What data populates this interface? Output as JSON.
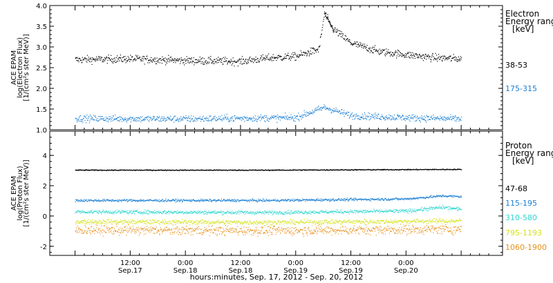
{
  "chart_data": [
    {
      "type": "scatter",
      "panel": "electron",
      "ylabel_lines": [
        "ACE EPAM",
        "log(Electron Flux)",
        "[1/(cm²s ster MeV)]"
      ],
      "ylim": [
        1.0,
        4.0
      ],
      "yticks": [
        1.0,
        1.5,
        2.0,
        2.5,
        3.0,
        3.5,
        4.0
      ],
      "ytick_labels": [
        "1.0",
        "1.5",
        "2.0",
        "2.5",
        "3.0",
        "3.5",
        "4.0"
      ],
      "legend_title_lines": [
        "Electron",
        "Energy ranges",
        "[keV]"
      ],
      "series": [
        {
          "name": "38-53",
          "color": "#000000",
          "baseline": 2.68,
          "noise": 0.09,
          "peak_hour": 54.2,
          "peak_value": 3.82,
          "points": [
            [
              0,
              2.7
            ],
            [
              12,
              2.72
            ],
            [
              24,
              2.68
            ],
            [
              36,
              2.66
            ],
            [
              42,
              2.74
            ],
            [
              48,
              2.78
            ],
            [
              53,
              2.95
            ],
            [
              54.2,
              3.82
            ],
            [
              56,
              3.45
            ],
            [
              60,
              3.1
            ],
            [
              66,
              2.9
            ],
            [
              72,
              2.82
            ],
            [
              78,
              2.75
            ],
            [
              84,
              2.72
            ]
          ]
        },
        {
          "name": "175-315",
          "color": "#1a7fd4",
          "baseline": 1.28,
          "noise": 0.08,
          "points": [
            [
              0,
              1.28
            ],
            [
              24,
              1.27
            ],
            [
              48,
              1.3
            ],
            [
              54.2,
              1.55
            ],
            [
              60,
              1.35
            ],
            [
              72,
              1.3
            ],
            [
              84,
              1.27
            ]
          ]
        }
      ]
    },
    {
      "type": "scatter",
      "panel": "proton",
      "ylabel_lines": [
        "ACE EPAM",
        "log(Proton Flux)",
        "[1/(cm²s ster MeV)]"
      ],
      "ylim": [
        -2.6,
        5.6
      ],
      "yticks": [
        -2,
        0,
        2,
        4
      ],
      "ytick_labels": [
        "-2",
        "0",
        "2",
        "4"
      ],
      "legend_title_lines": [
        "Proton",
        "Energy ranges",
        "[keV]"
      ],
      "series": [
        {
          "name": "47-68",
          "color": "#000000",
          "baseline": 3.05,
          "noise": 0.03,
          "points": [
            [
              0,
              3.05
            ],
            [
              42,
              3.05
            ],
            [
              84,
              3.1
            ]
          ]
        },
        {
          "name": "115-195",
          "color": "#1a7fd4",
          "baseline": 1.05,
          "noise": 0.08,
          "points": [
            [
              0,
              1.05
            ],
            [
              42,
              1.05
            ],
            [
              72,
              1.15
            ],
            [
              80,
              1.35
            ],
            [
              84,
              1.3
            ]
          ]
        },
        {
          "name": "310-580",
          "color": "#2fd6d0",
          "baseline": 0.3,
          "noise": 0.12,
          "points": [
            [
              0,
              0.3
            ],
            [
              42,
              0.25
            ],
            [
              72,
              0.35
            ],
            [
              80,
              0.6
            ],
            [
              84,
              0.45
            ]
          ]
        },
        {
          "name": "795-1193",
          "color": "#d4e21a",
          "baseline": -0.35,
          "noise": 0.15,
          "points": [
            [
              0,
              -0.35
            ],
            [
              42,
              -0.4
            ],
            [
              84,
              -0.3
            ]
          ]
        },
        {
          "name": "1060-1900",
          "color": "#e8901a",
          "baseline": -0.9,
          "noise": 0.3,
          "points": [
            [
              0,
              -0.9
            ],
            [
              42,
              -0.95
            ],
            [
              84,
              -0.85
            ]
          ]
        }
      ]
    }
  ],
  "x_axis": {
    "range_hours": [
      -5.5,
      93
    ],
    "ticks": [
      {
        "hour": 12,
        "time": "12:00",
        "date": "Sep.17"
      },
      {
        "hour": 24,
        "time": "0:00",
        "date": "Sep.18"
      },
      {
        "hour": 36,
        "time": "12:00",
        "date": "Sep.18"
      },
      {
        "hour": 48,
        "time": "0:00",
        "date": "Sep.19"
      },
      {
        "hour": 60,
        "time": "12:00",
        "date": "Sep.19"
      },
      {
        "hour": 72,
        "time": "0:00",
        "date": "Sep.20"
      }
    ],
    "xlabel": "hours:minutes, Sep. 17, 2012 - Sep. 20, 2012"
  }
}
